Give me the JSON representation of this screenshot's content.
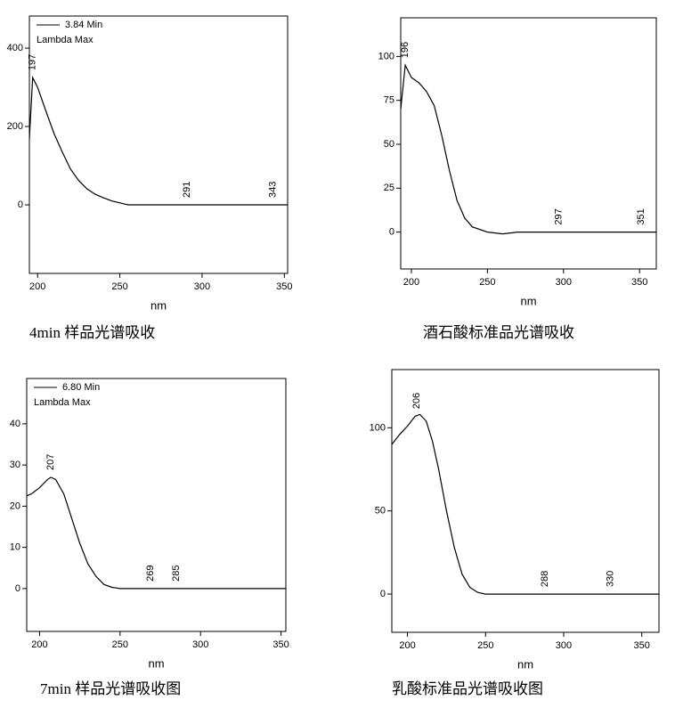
{
  "chart_data": [
    {
      "type": "line",
      "x": [
        195,
        197,
        200,
        205,
        210,
        215,
        220,
        225,
        230,
        235,
        240,
        245,
        250,
        255,
        270,
        300,
        330,
        352
      ],
      "series": [
        {
          "name": "3.84 Min",
          "color": "#000000",
          "values": [
            170,
            325,
            300,
            240,
            182,
            135,
            91,
            62,
            41,
            27,
            18,
            10,
            5,
            0,
            0,
            0,
            0,
            0
          ]
        }
      ],
      "legend_note": "Lambda Max",
      "xlim": [
        195,
        352
      ],
      "ylim": [
        -175,
        482
      ],
      "xticks": [
        200,
        250,
        300,
        350
      ],
      "yticks": [
        0,
        200,
        400
      ],
      "annotations": [
        197,
        291,
        343
      ],
      "x_label": "nm",
      "caption": "4min 样品光谱吸收"
    },
    {
      "type": "line",
      "x": [
        193,
        196,
        200,
        205,
        210,
        215,
        220,
        225,
        230,
        235,
        240,
        250,
        260,
        270,
        300,
        330,
        361
      ],
      "series": [
        {
          "color": "#000000",
          "values": [
            70,
            95,
            88,
            85,
            80,
            72,
            55,
            35,
            18,
            8,
            3,
            0,
            -1,
            0,
            0,
            0,
            0
          ]
        }
      ],
      "xlim": [
        193,
        361
      ],
      "ylim": [
        -21,
        122
      ],
      "xticks": [
        200,
        250,
        300,
        350
      ],
      "yticks": [
        0,
        25,
        50,
        75,
        100
      ],
      "annotations": [
        196,
        297,
        351
      ],
      "x_label": "nm",
      "caption": "酒石酸标准品光谱吸收"
    },
    {
      "type": "line",
      "x": [
        192,
        195,
        200,
        205,
        207,
        210,
        215,
        220,
        225,
        230,
        235,
        240,
        245,
        250,
        300,
        353
      ],
      "series": [
        {
          "name": "6.80 Min",
          "color": "#000000",
          "values": [
            22.5,
            23,
            24.5,
            26.5,
            27,
            26.5,
            23,
            17,
            11,
            6,
            3,
            1,
            0.3,
            0,
            0,
            0
          ]
        }
      ],
      "legend_note": "Lambda Max",
      "xlim": [
        192,
        353
      ],
      "ylim": [
        -10.4,
        51
      ],
      "xticks": [
        200,
        250,
        300,
        350
      ],
      "yticks": [
        0,
        10,
        20,
        30,
        40
      ],
      "annotations": [
        207,
        269,
        285
      ],
      "x_label": "nm",
      "caption": "7min  样品光谱吸收图"
    },
    {
      "type": "line",
      "x": [
        190,
        195,
        200,
        205,
        208,
        212,
        216,
        220,
        225,
        230,
        235,
        240,
        245,
        250,
        300,
        361
      ],
      "series": [
        {
          "color": "#000000",
          "values": [
            90,
            96,
            101,
            107,
            108,
            104,
            92,
            75,
            50,
            28,
            12,
            4,
            1,
            0,
            0,
            0
          ]
        }
      ],
      "xlim": [
        190,
        361
      ],
      "ylim": [
        -23,
        135
      ],
      "xticks": [
        200,
        250,
        300,
        350
      ],
      "yticks": [
        0,
        50,
        100
      ],
      "annotations": [
        206,
        288,
        330
      ],
      "x_label": "nm",
      "caption": "乳酸标准品光谱吸收图"
    }
  ]
}
